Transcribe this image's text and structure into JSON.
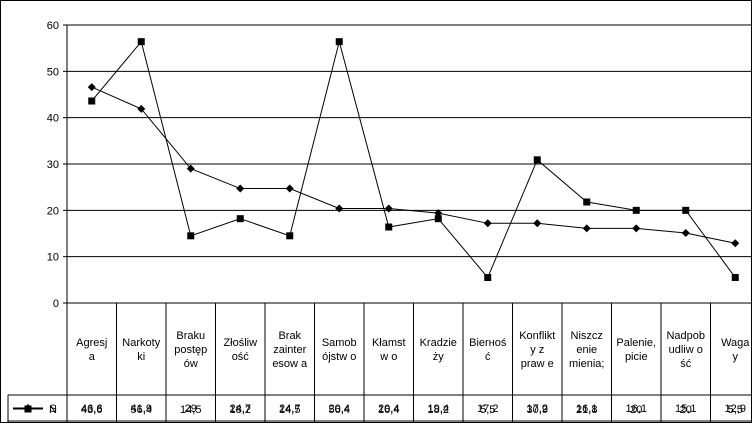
{
  "chart_data": {
    "type": "line",
    "categories": [
      [
        "Agresj",
        "a"
      ],
      [
        "Narkoty",
        "ki"
      ],
      [
        "Braku",
        "postęp",
        "ów"
      ],
      [
        "Złośliw",
        "ość"
      ],
      [
        "Brak",
        "zainter",
        "esow a"
      ],
      [
        "Samob",
        "ójstw o"
      ],
      [
        "Kłamst",
        "w o"
      ],
      [
        "Kradzie",
        "ży"
      ],
      [
        "Bierноś",
        "ć"
      ],
      [
        "Konflikt",
        "y z",
        "praw e"
      ],
      [
        "Niszcz",
        "enie",
        "mienia;"
      ],
      [
        "Palenie,",
        "picie"
      ],
      [
        "Nadpob",
        "udliw o",
        "ść"
      ],
      [
        "Waga",
        "y"
      ]
    ],
    "series": [
      {
        "name": "S",
        "marker": "diamond",
        "color": "#000000",
        "values": [
          46.6,
          41.9,
          29,
          24.7,
          24.7,
          20.4,
          20.4,
          19.4,
          17.2,
          17.2,
          16.1,
          16.1,
          15.1,
          12.9
        ],
        "labels": [
          "46,6",
          "41,9",
          "29",
          "24,7",
          "24,7",
          "20,4",
          "20,4",
          "19,4",
          "17,2",
          "17,2",
          "16,1",
          "16,1",
          "15,1",
          "12,9"
        ]
      },
      {
        "name": "N",
        "marker": "square",
        "color": "#000000",
        "values": [
          43.6,
          56.4,
          14.5,
          18.2,
          14.5,
          56.4,
          16.4,
          18.2,
          5.5,
          30.9,
          21.8,
          20,
          20,
          5.5
        ],
        "labels": [
          "43,6",
          "56,4",
          "14,5",
          "18,2",
          "14,5",
          "56,4",
          "16,4",
          "18,2",
          "5,5",
          "30,9",
          "21,8",
          "20",
          "20",
          "5,5"
        ]
      }
    ],
    "ylim": [
      0,
      60
    ],
    "yticks": [
      "0",
      "10",
      "20",
      "30",
      "40",
      "50",
      "60"
    ],
    "grid": true,
    "legend": "data-table"
  }
}
